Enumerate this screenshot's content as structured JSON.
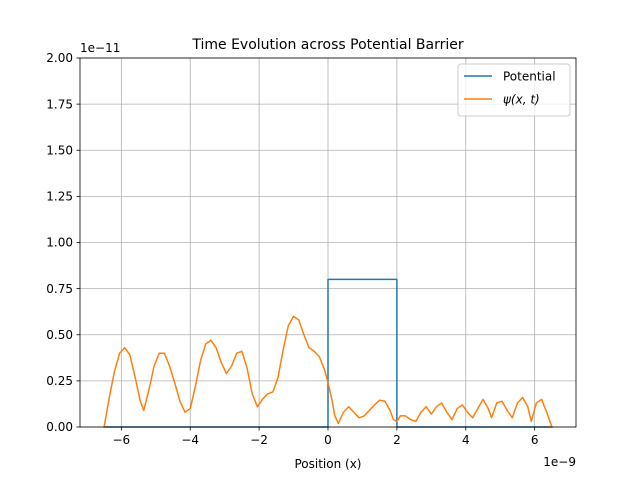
{
  "chart_data": {
    "type": "line",
    "title": "Time Evolution across Potential Barrier",
    "xlabel": "Position (x)",
    "ylabel": "",
    "x_offset_label": "1e−9",
    "y_offset_label": "1e−11",
    "xlim": [
      -7.2,
      7.2
    ],
    "ylim": [
      0,
      2.0
    ],
    "x_ticks": [
      -6,
      -4,
      -2,
      0,
      2,
      4,
      6
    ],
    "x_tick_labels": [
      "−6",
      "−4",
      "−2",
      "0",
      "2",
      "4",
      "6"
    ],
    "y_ticks": [
      0,
      0.25,
      0.5,
      0.75,
      1.0,
      1.25,
      1.5,
      1.75,
      2.0
    ],
    "y_tick_labels": [
      "0.00",
      "0.25",
      "0.50",
      "0.75",
      "1.00",
      "1.25",
      "1.50",
      "1.75",
      "2.00"
    ],
    "grid": true,
    "legend_position": "top-right",
    "series": [
      {
        "name": "Potential",
        "color": "#1f77b4",
        "points": [
          [
            -6.5,
            0
          ],
          [
            0,
            0
          ],
          [
            0,
            0.8
          ],
          [
            2,
            0.8
          ],
          [
            2,
            0
          ],
          [
            6.5,
            0
          ]
        ]
      },
      {
        "name": "ψ(x, t)",
        "color": "#ff7f0e",
        "points": [
          [
            -6.5,
            0.0
          ],
          [
            -6.35,
            0.16
          ],
          [
            -6.2,
            0.3
          ],
          [
            -6.05,
            0.4
          ],
          [
            -5.9,
            0.43
          ],
          [
            -5.75,
            0.39
          ],
          [
            -5.6,
            0.27
          ],
          [
            -5.45,
            0.14
          ],
          [
            -5.35,
            0.09
          ],
          [
            -5.2,
            0.2
          ],
          [
            -5.05,
            0.33
          ],
          [
            -4.9,
            0.4
          ],
          [
            -4.75,
            0.4
          ],
          [
            -4.6,
            0.33
          ],
          [
            -4.45,
            0.24
          ],
          [
            -4.3,
            0.14
          ],
          [
            -4.15,
            0.08
          ],
          [
            -4.0,
            0.1
          ],
          [
            -3.85,
            0.22
          ],
          [
            -3.7,
            0.36
          ],
          [
            -3.55,
            0.45
          ],
          [
            -3.4,
            0.47
          ],
          [
            -3.25,
            0.43
          ],
          [
            -3.1,
            0.35
          ],
          [
            -2.95,
            0.29
          ],
          [
            -2.8,
            0.33
          ],
          [
            -2.65,
            0.4
          ],
          [
            -2.5,
            0.41
          ],
          [
            -2.35,
            0.32
          ],
          [
            -2.2,
            0.18
          ],
          [
            -2.05,
            0.11
          ],
          [
            -1.9,
            0.15
          ],
          [
            -1.75,
            0.18
          ],
          [
            -1.6,
            0.19
          ],
          [
            -1.45,
            0.27
          ],
          [
            -1.3,
            0.42
          ],
          [
            -1.15,
            0.55
          ],
          [
            -1.0,
            0.6
          ],
          [
            -0.85,
            0.58
          ],
          [
            -0.7,
            0.5
          ],
          [
            -0.55,
            0.43
          ],
          [
            -0.4,
            0.41
          ],
          [
            -0.25,
            0.38
          ],
          [
            -0.1,
            0.31
          ],
          [
            0.0,
            0.24
          ],
          [
            0.1,
            0.16
          ],
          [
            0.2,
            0.06
          ],
          [
            0.3,
            0.02
          ],
          [
            0.45,
            0.08
          ],
          [
            0.6,
            0.11
          ],
          [
            0.75,
            0.08
          ],
          [
            0.9,
            0.05
          ],
          [
            1.05,
            0.06
          ],
          [
            1.2,
            0.09
          ],
          [
            1.35,
            0.12
          ],
          [
            1.5,
            0.145
          ],
          [
            1.65,
            0.14
          ],
          [
            1.8,
            0.09
          ],
          [
            1.9,
            0.04
          ],
          [
            2.0,
            0.03
          ],
          [
            2.1,
            0.06
          ],
          [
            2.25,
            0.06
          ],
          [
            2.4,
            0.04
          ],
          [
            2.55,
            0.03
          ],
          [
            2.7,
            0.08
          ],
          [
            2.85,
            0.11
          ],
          [
            3.0,
            0.07
          ],
          [
            3.15,
            0.11
          ],
          [
            3.3,
            0.13
          ],
          [
            3.45,
            0.08
          ],
          [
            3.6,
            0.04
          ],
          [
            3.75,
            0.1
          ],
          [
            3.9,
            0.12
          ],
          [
            4.05,
            0.08
          ],
          [
            4.2,
            0.05
          ],
          [
            4.35,
            0.1
          ],
          [
            4.5,
            0.15
          ],
          [
            4.65,
            0.1
          ],
          [
            4.75,
            0.05
          ],
          [
            4.9,
            0.13
          ],
          [
            5.05,
            0.14
          ],
          [
            5.2,
            0.09
          ],
          [
            5.35,
            0.05
          ],
          [
            5.5,
            0.13
          ],
          [
            5.65,
            0.16
          ],
          [
            5.8,
            0.11
          ],
          [
            5.9,
            0.03
          ],
          [
            6.05,
            0.13
          ],
          [
            6.2,
            0.15
          ],
          [
            6.35,
            0.08
          ],
          [
            6.5,
            0.0
          ]
        ]
      }
    ]
  }
}
